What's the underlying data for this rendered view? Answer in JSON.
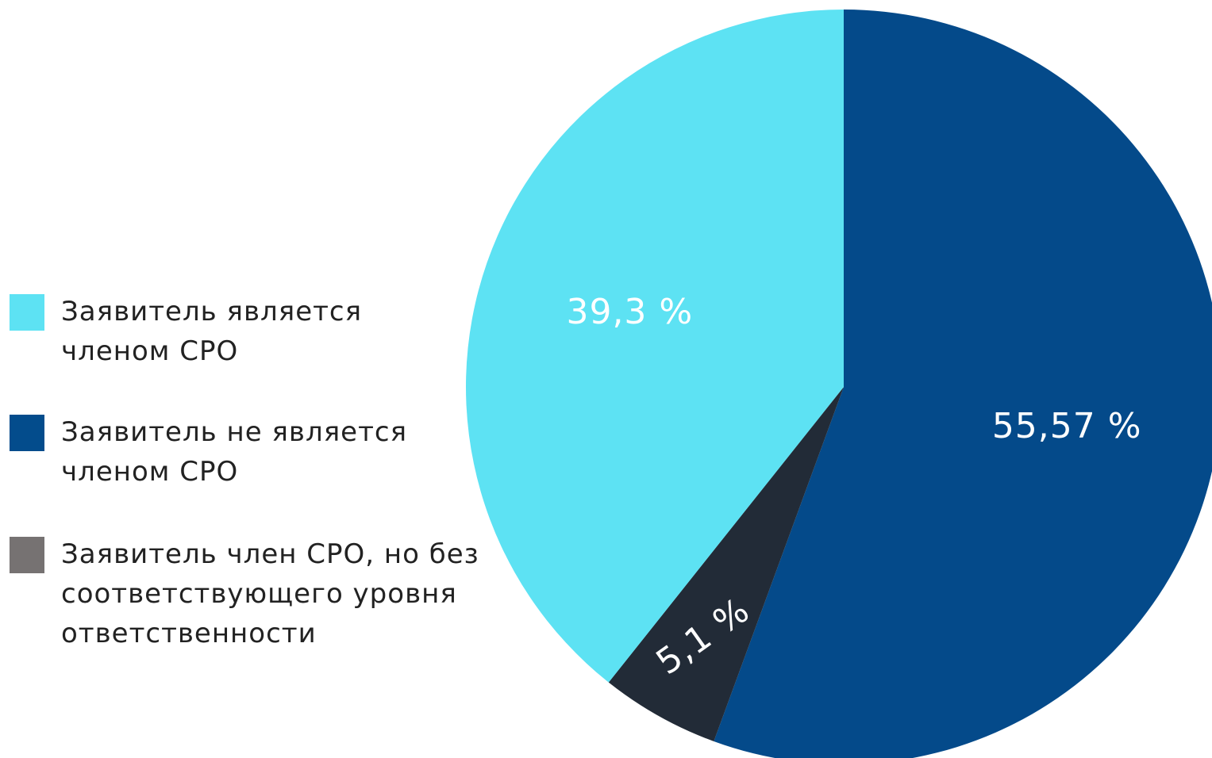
{
  "chart_data": {
    "type": "pie",
    "categories": [
      "Заявитель не является членом СРО",
      "Заявитель член СРО, но без соответствующего уровня ответственности",
      "Заявитель является членом СРО"
    ],
    "values": [
      55.57,
      5.1,
      39.3
    ],
    "value_labels": [
      "55,57 %",
      "5,1 %",
      "39,3 %"
    ],
    "colors": [
      "#044a8a",
      "#222b37",
      "#5de2f3"
    ],
    "legend": [
      "Заявитель является членом СРО",
      "Заявитель не является членом СРО",
      "Заявитель член СРО, но без соответствующего уровня ответственности"
    ],
    "legend_colors": [
      "#5de2f3",
      "#034c8c",
      "#767272"
    ],
    "legend_position": "left"
  }
}
